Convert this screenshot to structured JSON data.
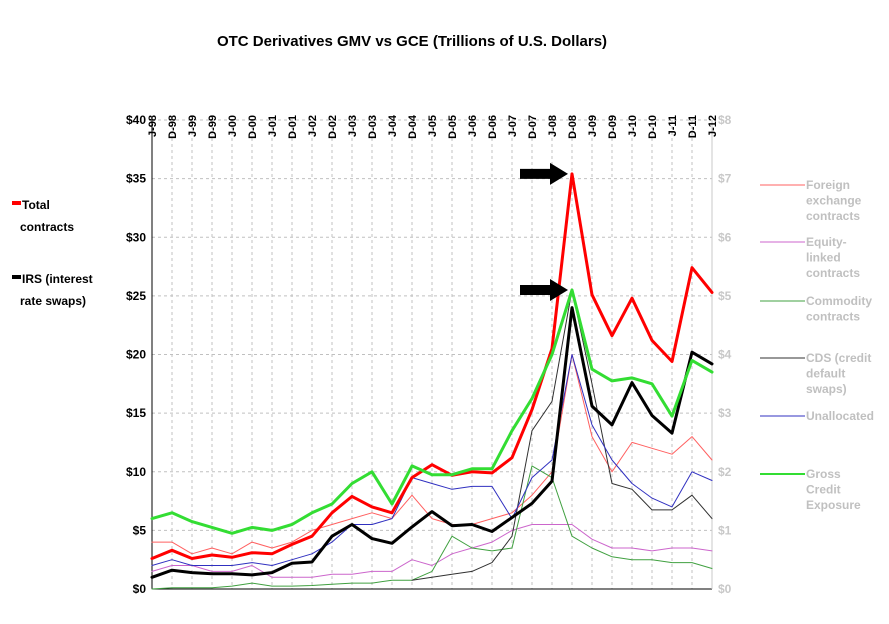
{
  "chart_data": {
    "type": "line",
    "title": "OTC Derivatives GMV vs GCE (Trillions of U.S. Dollars)",
    "x": [
      "J-98",
      "D-98",
      "J-99",
      "D-99",
      "J-00",
      "D-00",
      "J-01",
      "D-01",
      "J-02",
      "D-02",
      "J-03",
      "D-03",
      "J-04",
      "D-04",
      "J-05",
      "D-05",
      "J-06",
      "D-06",
      "J-07",
      "D-07",
      "J-08",
      "D-08",
      "J-09",
      "D-09",
      "J-10",
      "D-10",
      "J-11",
      "D-11",
      "J-12"
    ],
    "y_left": {
      "range": [
        0,
        40
      ],
      "ticks": [
        "$0",
        "$5",
        "$10",
        "$15",
        "$20",
        "$25",
        "$30",
        "$35",
        "$40"
      ]
    },
    "y_right": {
      "range": [
        0,
        8
      ],
      "ticks": [
        "$0",
        "$1",
        "$2",
        "$3",
        "$4",
        "$5",
        "$6",
        "$7",
        "$8"
      ]
    },
    "grid": true,
    "series": [
      {
        "name": "Total contracts",
        "axis": "left",
        "color": "#ff0000",
        "width": 3,
        "values": [
          2.6,
          3.3,
          2.6,
          2.9,
          2.7,
          3.1,
          3.0,
          3.8,
          4.5,
          6.5,
          7.9,
          7.0,
          6.5,
          9.5,
          10.6,
          9.7,
          10.0,
          9.9,
          11.2,
          15.3,
          20.5,
          35.4,
          25.1,
          21.6,
          24.8,
          21.2,
          19.4,
          27.4,
          25.3
        ]
      },
      {
        "name": "IRS (interest rate swaps)",
        "axis": "left",
        "color": "#000000",
        "width": 3,
        "values": [
          1.0,
          1.6,
          1.4,
          1.3,
          1.3,
          1.2,
          1.4,
          2.2,
          2.3,
          4.5,
          5.5,
          4.3,
          3.9,
          5.3,
          6.6,
          5.4,
          5.5,
          4.9,
          6.1,
          7.3,
          9.2,
          24.0,
          15.6,
          14.0,
          17.6,
          14.8,
          13.3,
          20.2,
          19.2
        ]
      },
      {
        "name": "Foreign exchange contracts",
        "axis": "right",
        "color": "#ff6060",
        "width": 1,
        "values": [
          0.8,
          0.8,
          0.6,
          0.7,
          0.6,
          0.8,
          0.7,
          0.8,
          1.0,
          1.1,
          1.2,
          1.3,
          1.2,
          1.6,
          1.2,
          1.1,
          1.1,
          1.2,
          1.3,
          1.6,
          2.0,
          4.0,
          2.6,
          2.0,
          2.5,
          2.4,
          2.3,
          2.6,
          2.2
        ]
      },
      {
        "name": "Equity-linked contracts",
        "axis": "right",
        "color": "#cc66cc",
        "width": 1,
        "values": [
          0.3,
          0.4,
          0.4,
          0.3,
          0.3,
          0.4,
          0.2,
          0.2,
          0.2,
          0.25,
          0.25,
          0.3,
          0.3,
          0.5,
          0.4,
          0.6,
          0.7,
          0.8,
          1.0,
          1.1,
          1.1,
          1.1,
          0.85,
          0.7,
          0.7,
          0.65,
          0.7,
          0.7,
          0.65
        ]
      },
      {
        "name": "Commodity contracts",
        "axis": "right",
        "color": "#40a040",
        "width": 1,
        "values": [
          0.0,
          0.02,
          0.02,
          0.02,
          0.05,
          0.1,
          0.05,
          0.05,
          0.06,
          0.08,
          0.1,
          0.1,
          0.15,
          0.15,
          0.3,
          0.9,
          0.7,
          0.65,
          0.7,
          2.1,
          1.9,
          0.9,
          0.7,
          0.55,
          0.5,
          0.5,
          0.45,
          0.45,
          0.35
        ]
      },
      {
        "name": "CDS (credit default swaps)",
        "axis": "right",
        "color": "#303030",
        "width": 1,
        "values": [
          null,
          null,
          null,
          null,
          null,
          null,
          null,
          null,
          null,
          null,
          null,
          null,
          null,
          0.15,
          0.2,
          0.25,
          0.3,
          0.45,
          0.9,
          2.7,
          3.2,
          5.1,
          3.5,
          1.8,
          1.7,
          1.35,
          1.35,
          1.6,
          1.2
        ]
      },
      {
        "name": "Unallocated",
        "axis": "right",
        "color": "#3030c0",
        "width": 1,
        "values": [
          0.4,
          0.5,
          0.4,
          0.4,
          0.4,
          0.45,
          0.4,
          0.5,
          0.6,
          0.8,
          1.1,
          1.1,
          1.2,
          1.9,
          1.8,
          1.7,
          1.75,
          1.75,
          1.2,
          1.9,
          2.2,
          4.0,
          2.8,
          2.2,
          1.8,
          1.55,
          1.4,
          2.0,
          1.85
        ]
      },
      {
        "name": "Gross Credit Exposure",
        "axis": "right",
        "color": "#33dd33",
        "width": 3,
        "values": [
          1.2,
          1.3,
          1.15,
          1.05,
          0.95,
          1.05,
          1.0,
          1.1,
          1.3,
          1.45,
          1.8,
          2.0,
          1.45,
          2.1,
          1.95,
          1.95,
          2.05,
          2.05,
          2.7,
          3.25,
          4.0,
          5.1,
          3.75,
          3.55,
          3.6,
          3.5,
          2.95,
          3.9,
          3.7
        ]
      }
    ],
    "legend_left": [
      {
        "key": "Total contracts",
        "lines": [
          "Total",
          "contracts"
        ],
        "color": "#ff0000"
      },
      {
        "key": "IRS (interest rate swaps)",
        "lines": [
          "IRS (interest",
          "rate swaps)"
        ],
        "color": "#000000"
      }
    ],
    "legend_right": [
      {
        "key": "Foreign exchange contracts",
        "lines": [
          "Foreign",
          "exchange",
          "contracts"
        ],
        "color": "#ff6060"
      },
      {
        "key": "Equity-linked contracts",
        "lines": [
          "Equity-",
          "linked",
          "contracts"
        ],
        "color": "#cc66cc"
      },
      {
        "key": "Commodity contracts",
        "lines": [
          "Commodity",
          "contracts"
        ],
        "color": "#40a040"
      },
      {
        "key": "CDS (credit default swaps)",
        "lines": [
          "CDS (credit",
          "default",
          "swaps)"
        ],
        "color": "#303030"
      },
      {
        "key": "Unallocated",
        "lines": [
          "Unallocated"
        ],
        "color": "#3030c0"
      },
      {
        "key": "Gross Credit Exposure",
        "lines": [
          "Gross",
          "Credit",
          "Exposure"
        ],
        "color": "#33dd33"
      }
    ],
    "annotations": [
      {
        "type": "arrow",
        "target_series": "Total contracts",
        "x": "D-08"
      },
      {
        "type": "arrow",
        "target_series": "Gross Credit Exposure",
        "x": "D-08"
      }
    ]
  }
}
